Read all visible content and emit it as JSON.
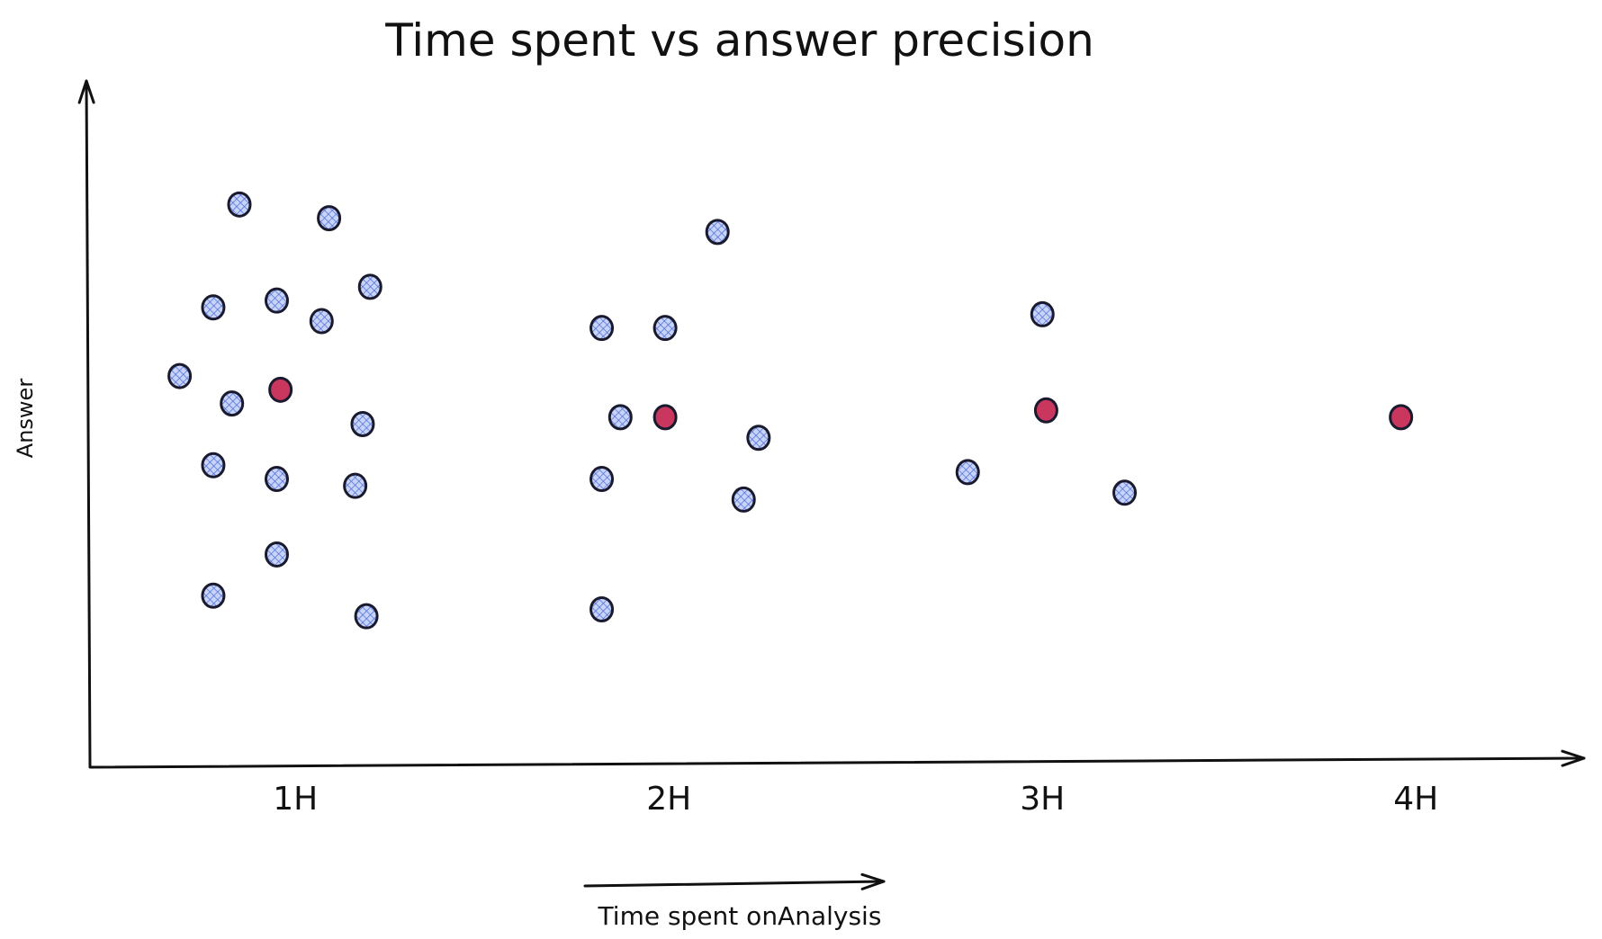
{
  "chart_data": {
    "type": "scatter",
    "title": "Time spent vs answer precision",
    "xlabel": "Time spent onAnalysis",
    "ylabel": "Answer",
    "categories": [
      "1H",
      "2H",
      "3H",
      "4H"
    ],
    "grid": false,
    "legend": "none",
    "colors": {
      "answer_fill": "#a5b8f0",
      "answer_hatch": "#4a6ad8",
      "correct_fill": "#c9375f",
      "outline": "#1a1a2e",
      "ink": "#111111"
    },
    "series": [
      {
        "key": "answers",
        "color": "#a5b8f0",
        "points": [
          {
            "x": 0.85,
            "y": 8.2
          },
          {
            "x": 1.09,
            "y": 8.0
          },
          {
            "x": 1.2,
            "y": 7.0
          },
          {
            "x": 0.78,
            "y": 6.7
          },
          {
            "x": 0.95,
            "y": 6.8
          },
          {
            "x": 1.07,
            "y": 6.5
          },
          {
            "x": 0.69,
            "y": 5.7
          },
          {
            "x": 0.83,
            "y": 5.3
          },
          {
            "x": 1.18,
            "y": 5.0
          },
          {
            "x": 0.78,
            "y": 4.4
          },
          {
            "x": 0.95,
            "y": 4.2
          },
          {
            "x": 1.16,
            "y": 4.1
          },
          {
            "x": 0.95,
            "y": 3.1
          },
          {
            "x": 0.78,
            "y": 2.5
          },
          {
            "x": 1.19,
            "y": 2.2
          },
          {
            "x": 2.13,
            "y": 7.8
          },
          {
            "x": 1.82,
            "y": 6.4
          },
          {
            "x": 1.99,
            "y": 6.4
          },
          {
            "x": 1.87,
            "y": 5.1
          },
          {
            "x": 2.24,
            "y": 4.8
          },
          {
            "x": 1.82,
            "y": 4.2
          },
          {
            "x": 2.2,
            "y": 3.9
          },
          {
            "x": 1.82,
            "y": 2.3
          },
          {
            "x": 3.0,
            "y": 6.6
          },
          {
            "x": 2.8,
            "y": 4.3
          },
          {
            "x": 3.22,
            "y": 4.0
          }
        ]
      },
      {
        "key": "correct",
        "color": "#c9375f",
        "points": [
          {
            "x": 0.96,
            "y": 5.5
          },
          {
            "x": 1.99,
            "y": 5.1
          },
          {
            "x": 3.01,
            "y": 5.2
          },
          {
            "x": 3.96,
            "y": 5.1
          }
        ]
      }
    ],
    "xlim": [
      0.45,
      4.45
    ],
    "ylim": [
      0,
      10
    ]
  }
}
